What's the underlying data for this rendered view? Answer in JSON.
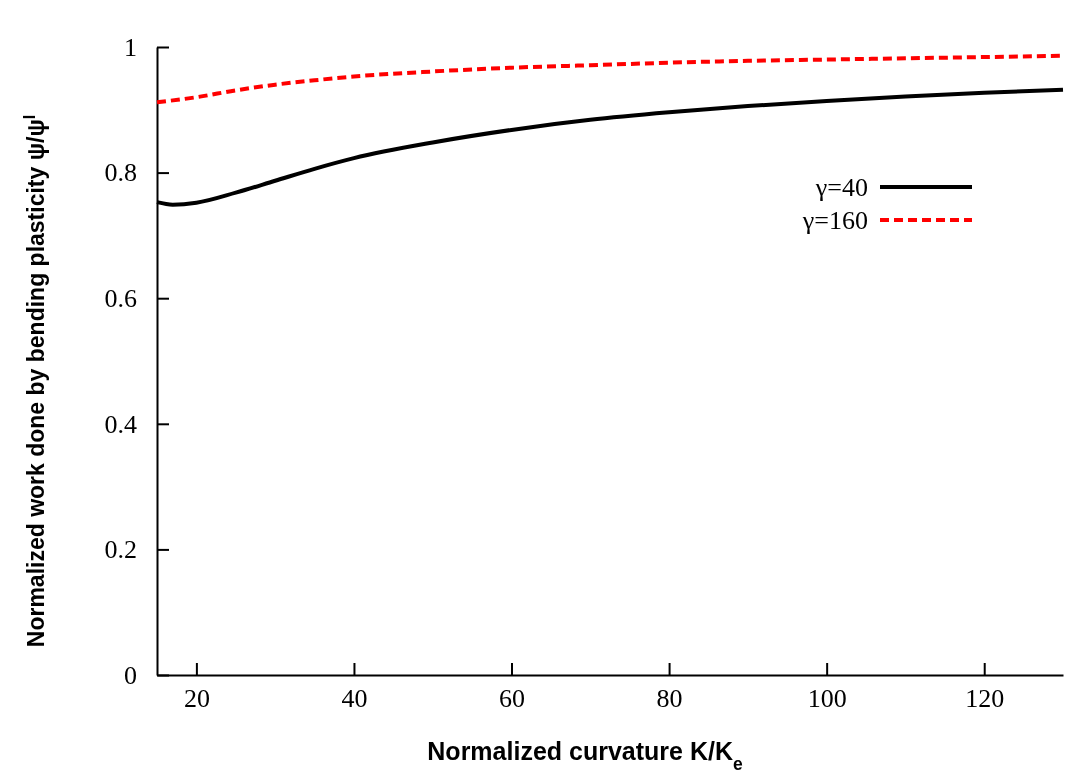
{
  "chart_data": {
    "type": "line",
    "xlabel": "Normalized curvature K/K$_{e}$",
    "ylabel": "Normalized work done by bending plasticity ψ/ψ$^{I}$",
    "xlim": [
      15,
      130
    ],
    "ylim": [
      0,
      1
    ],
    "xticks": [
      20,
      40,
      60,
      80,
      100,
      120
    ],
    "yticks": [
      0,
      0.2,
      0.4,
      0.6,
      0.8,
      1
    ],
    "grid": false,
    "legend": "top right",
    "marker": "none",
    "series": [
      {
        "name": "γ=40",
        "color": "#000000",
        "line_style": "solid",
        "x": [
          15,
          17,
          20,
          25,
          30,
          35,
          40,
          50,
          60,
          70,
          80,
          90,
          100,
          110,
          120,
          130
        ],
        "values": [
          0.753,
          0.749,
          0.752,
          0.768,
          0.787,
          0.806,
          0.823,
          0.848,
          0.868,
          0.884,
          0.896,
          0.906,
          0.914,
          0.921,
          0.927,
          0.932
        ]
      },
      {
        "name": "γ=160",
        "color": "#ff0000",
        "line_style": "dashed",
        "x": [
          15,
          20,
          25,
          30,
          35,
          40,
          50,
          60,
          70,
          80,
          90,
          100,
          110,
          120,
          130
        ],
        "values": [
          0.912,
          0.92,
          0.931,
          0.94,
          0.947,
          0.953,
          0.961,
          0.967,
          0.971,
          0.975,
          0.978,
          0.98,
          0.982,
          0.984,
          0.986
        ]
      }
    ]
  }
}
